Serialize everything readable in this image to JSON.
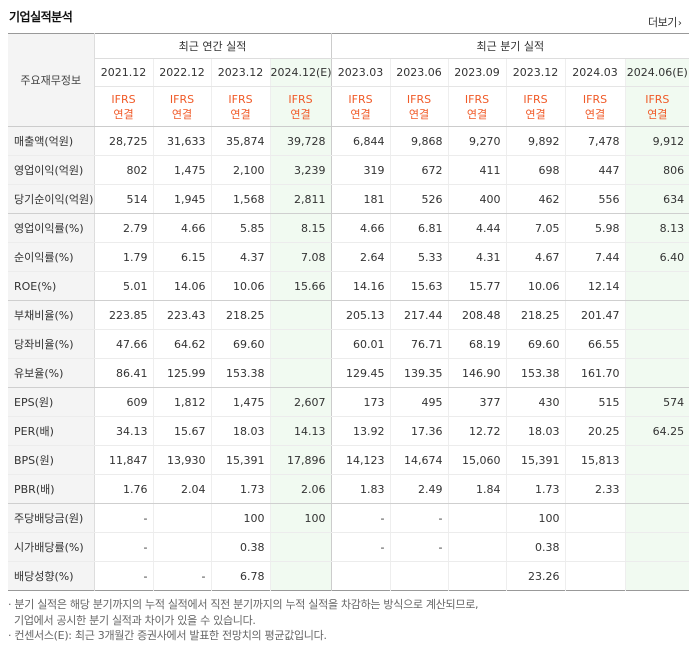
{
  "header": {
    "title": "기업실적분석",
    "more_label": "더보기",
    "more_icon": "chevron-right-icon"
  },
  "table": {
    "corner_label": "주요재무정보",
    "group_annual": "최근 연간 실적",
    "group_quarter": "최근 분기 실적",
    "periods": [
      "2021.12",
      "2022.12",
      "2023.12",
      "2024.12(E)",
      "2023.03",
      "2023.06",
      "2023.09",
      "2023.12",
      "2024.03",
      "2024.06(E)"
    ],
    "standard_top": "IFRS",
    "standard_bottom": "연결",
    "rows": [
      {
        "label": "매출액(억원)",
        "values": [
          "28,725",
          "31,633",
          "35,874",
          "39,728",
          "6,844",
          "9,868",
          "9,270",
          "9,892",
          "7,478",
          "9,912"
        ]
      },
      {
        "label": "영업이익(억원)",
        "values": [
          "802",
          "1,475",
          "2,100",
          "3,239",
          "319",
          "672",
          "411",
          "698",
          "447",
          "806"
        ]
      },
      {
        "label": "당기순이익(억원)",
        "values": [
          "514",
          "1,945",
          "1,568",
          "2,811",
          "181",
          "526",
          "400",
          "462",
          "556",
          "634"
        ]
      },
      {
        "label": "영업이익률(%)",
        "values": [
          "2.79",
          "4.66",
          "5.85",
          "8.15",
          "4.66",
          "6.81",
          "4.44",
          "7.05",
          "5.98",
          "8.13"
        ]
      },
      {
        "label": "순이익률(%)",
        "values": [
          "1.79",
          "6.15",
          "4.37",
          "7.08",
          "2.64",
          "5.33",
          "4.31",
          "4.67",
          "7.44",
          "6.40"
        ]
      },
      {
        "label": "ROE(%)",
        "values": [
          "5.01",
          "14.06",
          "10.06",
          "15.66",
          "14.16",
          "15.63",
          "15.77",
          "10.06",
          "12.14",
          ""
        ]
      },
      {
        "label": "부채비율(%)",
        "values": [
          "223.85",
          "223.43",
          "218.25",
          "",
          "205.13",
          "217.44",
          "208.48",
          "218.25",
          "201.47",
          ""
        ]
      },
      {
        "label": "당좌비율(%)",
        "values": [
          "47.66",
          "64.62",
          "69.60",
          "",
          "60.01",
          "76.71",
          "68.19",
          "69.60",
          "66.55",
          ""
        ]
      },
      {
        "label": "유보율(%)",
        "values": [
          "86.41",
          "125.99",
          "153.38",
          "",
          "129.45",
          "139.35",
          "146.90",
          "153.38",
          "161.70",
          ""
        ]
      },
      {
        "label": "EPS(원)",
        "values": [
          "609",
          "1,812",
          "1,475",
          "2,607",
          "173",
          "495",
          "377",
          "430",
          "515",
          "574"
        ]
      },
      {
        "label": "PER(배)",
        "values": [
          "34.13",
          "15.67",
          "18.03",
          "14.13",
          "13.92",
          "17.36",
          "12.72",
          "18.03",
          "20.25",
          "64.25"
        ]
      },
      {
        "label": "BPS(원)",
        "values": [
          "11,847",
          "13,930",
          "15,391",
          "17,896",
          "14,123",
          "14,674",
          "15,060",
          "15,391",
          "15,813",
          ""
        ]
      },
      {
        "label": "PBR(배)",
        "values": [
          "1.76",
          "2.04",
          "1.73",
          "2.06",
          "1.83",
          "2.49",
          "1.84",
          "1.73",
          "2.33",
          ""
        ]
      },
      {
        "label": "주당배당금(원)",
        "values": [
          "-",
          "",
          "100",
          "100",
          "-",
          "-",
          "",
          "100",
          "",
          ""
        ]
      },
      {
        "label": "시가배당률(%)",
        "values": [
          "-",
          "",
          "0.38",
          "",
          "-",
          "-",
          "",
          "0.38",
          "",
          ""
        ]
      },
      {
        "label": "배당성향(%)",
        "values": [
          "-",
          "-",
          "6.78",
          "",
          "",
          "",
          "",
          "23.26",
          "",
          ""
        ]
      }
    ]
  },
  "notes": [
    "· 분기 실적은 해당 분기까지의 누적 실적에서 직전 분기까지의 누적 실적을 차감하는 방식으로 계산되므로,",
    "기업에서 공시한 분기 실적과 차이가 있을 수 있습니다.",
    "· 컨센서스(E): 최근 3개월간 증권사에서 발표한 전망치의 평균값입니다."
  ],
  "colors": {
    "ifrs": "#f05a28",
    "estimate_bg": "#f1faf1",
    "estimate_text": "#3a9a3a",
    "label_bg": "#f4f4f4"
  }
}
